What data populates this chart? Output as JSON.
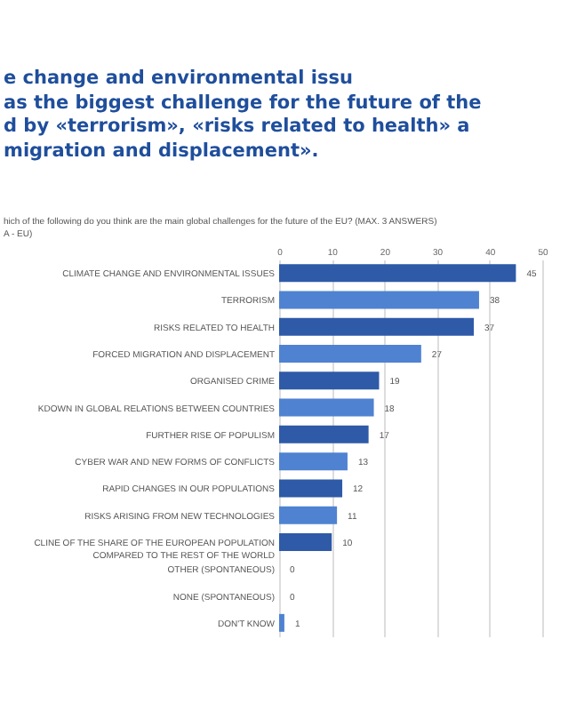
{
  "chart_data": {
    "type": "bar",
    "orientation": "horizontal",
    "title": "e change and environmental issu\nas the biggest challenge for the future of the\nd by «terrorism», «risks related to health» a\nmigration and displacement».",
    "subtitle": "hich of the following do you think are the main global challenges for the future of the EU? (MAX. 3 ANSWERS)\nA - EU)",
    "categories": [
      "CLIMATE CHANGE AND ENVIRONMENTAL ISSUES",
      "TERRORISM",
      "RISKS RELATED TO HEALTH",
      "FORCED MIGRATION AND DISPLACEMENT",
      "ORGANISED CRIME",
      "KDOWN IN GLOBAL RELATIONS BETWEEN COUNTRIES",
      "FURTHER RISE OF POPULISM",
      "CYBER WAR AND NEW FORMS OF CONFLICTS",
      "RAPID CHANGES IN OUR POPULATIONS",
      "RISKS ARISING FROM NEW TECHNOLOGIES",
      "CLINE OF THE SHARE OF THE EUROPEAN POPULATION\nCOMPARED TO THE REST OF THE WORLD",
      "OTHER (SPONTANEOUS)",
      "NONE (SPONTANEOUS)",
      "DON'T KNOW"
    ],
    "values": [
      45,
      38,
      37,
      27,
      19,
      18,
      17,
      13,
      12,
      11,
      10,
      0,
      0,
      1
    ],
    "colors": [
      "#2e5aa8",
      "#4f82d1",
      "#2e5aa8",
      "#4f82d1",
      "#2e5aa8",
      "#4f82d1",
      "#2e5aa8",
      "#4f82d1",
      "#2e5aa8",
      "#4f82d1",
      "#2e5aa8",
      "#4f82d1",
      "#2e5aa8",
      "#4f82d1"
    ],
    "xlim": [
      0,
      50
    ],
    "xticks": [
      0,
      10,
      20,
      30,
      40,
      50
    ],
    "grid": "x",
    "data_labels": true
  }
}
